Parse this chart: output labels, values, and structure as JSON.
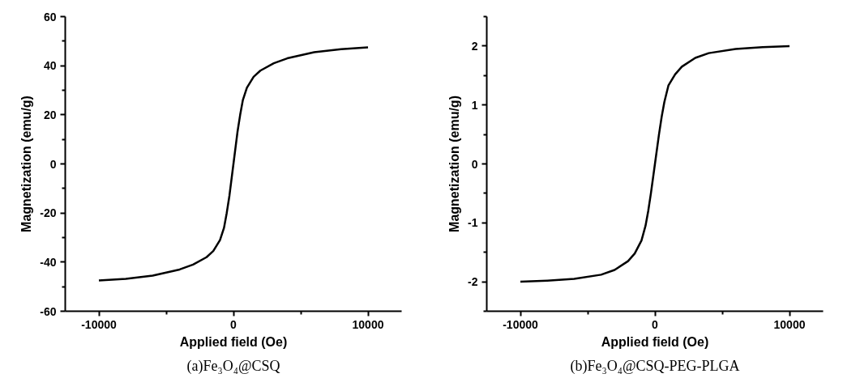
{
  "chart_data": [
    {
      "type": "line",
      "title": "(a)Fe₃O₄@CSQ",
      "xlabel": "Applied field (Oe)",
      "ylabel": "Magnetization (emu/g)",
      "x": [
        -10000,
        -8000,
        -6000,
        -4000,
        -3000,
        -2000,
        -1500,
        -1000,
        -700,
        -500,
        -300,
        0,
        300,
        500,
        700,
        1000,
        1500,
        2000,
        3000,
        4000,
        6000,
        8000,
        10000
      ],
      "series": [
        {
          "color": "#000000",
          "values": [
            -47.5,
            -46.8,
            -45.5,
            -43,
            -41,
            -38,
            -35.5,
            -31,
            -26,
            -20,
            -13,
            0,
            13,
            20,
            26,
            31,
            35.5,
            38,
            41,
            43,
            45.5,
            46.7,
            47.5
          ]
        }
      ],
      "xlim": [
        -12500,
        12500
      ],
      "ylim": [
        -60,
        60
      ],
      "xticks": [
        -10000,
        0,
        10000
      ],
      "yticks": [
        -60,
        -40,
        -20,
        0,
        20,
        40,
        60
      ],
      "grid": false,
      "marker": "none",
      "line_style": "solid"
    },
    {
      "type": "line",
      "title": "(b)Fe₃O₄@CSQ-PEG-PLGA",
      "xlabel": "Applied field (Oe)",
      "ylabel": "Magnetization (emu/g)",
      "x": [
        -10000,
        -8000,
        -6000,
        -4000,
        -3000,
        -2000,
        -1500,
        -1000,
        -700,
        -500,
        -300,
        0,
        300,
        500,
        700,
        1000,
        1500,
        2000,
        3000,
        4000,
        6000,
        8000,
        10000
      ],
      "series": [
        {
          "color": "#000000",
          "values": [
            -2.0,
            -1.98,
            -1.95,
            -1.88,
            -1.8,
            -1.65,
            -1.52,
            -1.3,
            -1.05,
            -0.8,
            -0.5,
            0,
            0.5,
            0.8,
            1.05,
            1.33,
            1.52,
            1.65,
            1.8,
            1.88,
            1.95,
            1.98,
            2.0
          ]
        }
      ],
      "xlim": [
        -12500,
        12500
      ],
      "ylim": [
        -2.5,
        2.5
      ],
      "xticks": [
        -10000,
        0,
        10000
      ],
      "yticks": [
        -2,
        -1,
        0,
        1,
        2
      ],
      "grid": false,
      "marker": "none",
      "line_style": "solid"
    }
  ]
}
